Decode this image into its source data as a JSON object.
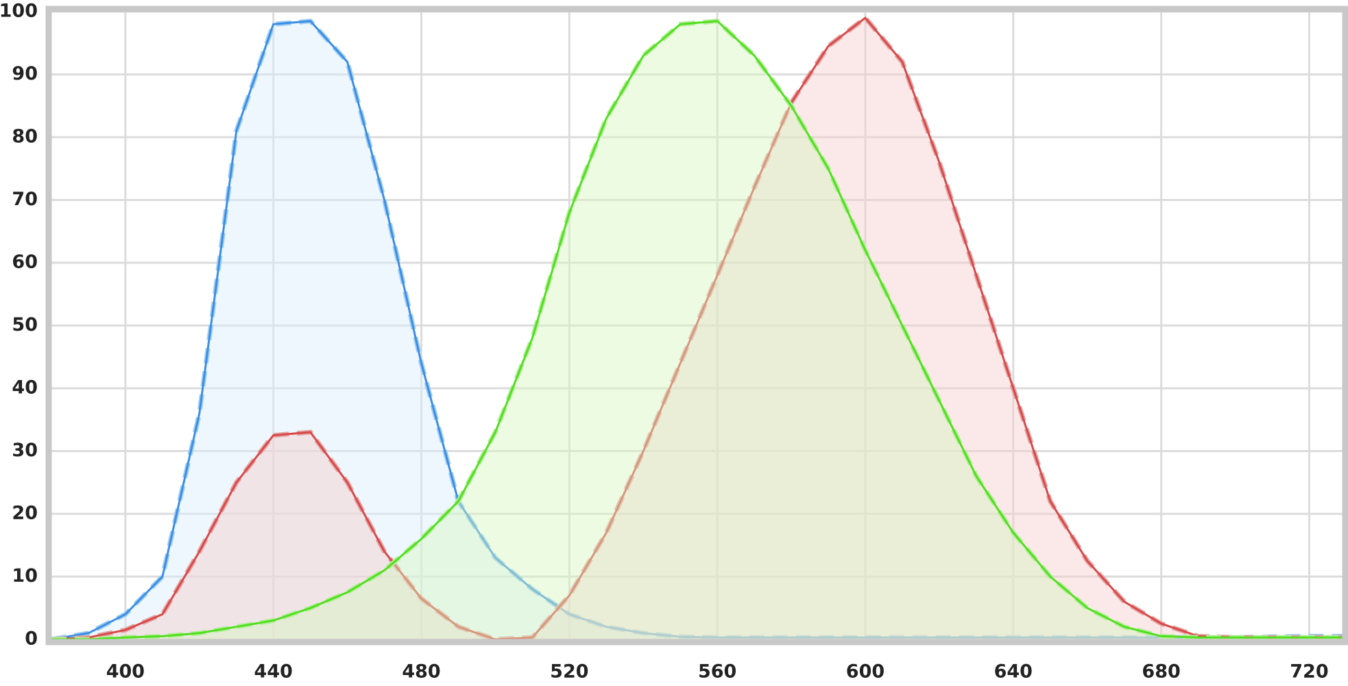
{
  "chart_data": {
    "type": "line",
    "x": [
      380,
      390,
      400,
      410,
      420,
      430,
      440,
      450,
      460,
      470,
      480,
      490,
      500,
      510,
      520,
      530,
      540,
      550,
      560,
      570,
      580,
      590,
      600,
      610,
      620,
      630,
      640,
      650,
      660,
      670,
      680,
      690,
      700,
      710,
      720,
      729
    ],
    "series": [
      {
        "color": "#3a8ee6",
        "dash_color": "#9fcdf1",
        "fill": "#d8eefb",
        "values": [
          0,
          1,
          4,
          10,
          36,
          81,
          98,
          98.5,
          92,
          70,
          44,
          22,
          13,
          8,
          4,
          2,
          1,
          0.4,
          0.3,
          0.3,
          0.3,
          0.3,
          0.3,
          0.3,
          0.3,
          0.3,
          0.3,
          0.3,
          0.3,
          0.3,
          0.3,
          0.3,
          0.3,
          0.4,
          0.5,
          0.5
        ]
      },
      {
        "color": "#d94848",
        "dash_color": "#e3a4a4",
        "fill": "#f7cccc",
        "values": [
          0,
          0.3,
          1.5,
          4,
          14,
          25,
          32.5,
          33,
          25,
          14,
          6.5,
          2,
          0,
          0.3,
          7,
          17,
          30,
          44,
          58,
          72,
          85.5,
          94.5,
          99,
          92,
          76,
          58,
          40,
          22,
          12.5,
          6,
          2.5,
          0.5,
          0.3,
          0.3,
          0.3,
          0.3
        ]
      },
      {
        "color": "#4fe01c",
        "dash_color": "#b6ec9c",
        "fill": "#d6f7c2",
        "values": [
          0,
          0,
          0.3,
          0.5,
          1,
          2,
          3,
          5,
          7.5,
          11,
          16,
          22,
          33,
          48,
          68,
          83,
          93,
          98,
          98.5,
          93,
          85,
          75,
          62,
          50,
          38,
          26,
          17,
          10,
          5,
          2,
          0.5,
          0.3,
          0.3,
          0.3,
          0.3,
          0.3
        ]
      }
    ],
    "xlim": [
      380,
      729
    ],
    "ylim": [
      0,
      100
    ],
    "xticks": [
      400,
      440,
      480,
      520,
      560,
      600,
      640,
      680,
      720
    ],
    "yticks": [
      0,
      10,
      20,
      30,
      40,
      50,
      60,
      70,
      80,
      90,
      100
    ],
    "grid": true
  }
}
